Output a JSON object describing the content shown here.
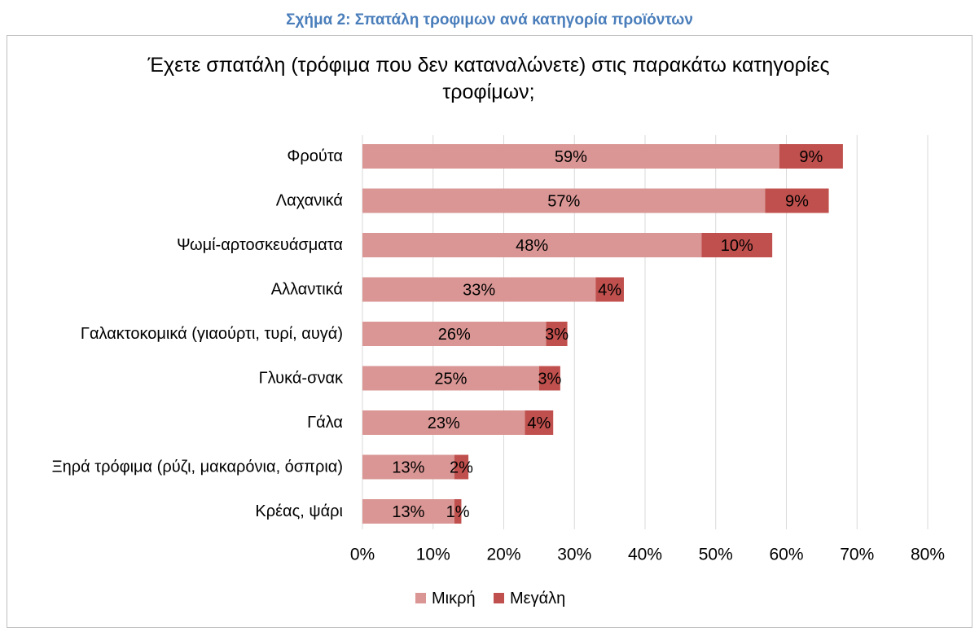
{
  "caption": "Σχήμα 2: Σπατάλη τροφιμων ανά κατηγορία προϊόντων",
  "chart_data": {
    "type": "bar",
    "orientation": "horizontal",
    "stacked": true,
    "title_lines": [
      "Έχετε σπατάλη (τρόφιμα που δεν καταναλώνετε) στις παρακάτω κατηγορίες",
      "τροφίμων;"
    ],
    "categories": [
      "Φρούτα",
      "Λαχανικά",
      "Ψωμί-αρτοσκευάσματα",
      "Αλλαντικά",
      "Γαλακτοκομικά (γιαούρτι, τυρί, αυγά)",
      "Γλυκά-σνακ",
      "Γάλα",
      "Ξηρά τρόφιμα (ρύζι, μακαρόνια, όσπρια)",
      "Κρέας, ψάρι"
    ],
    "series": [
      {
        "name": "Μικρή",
        "values": [
          59,
          57,
          48,
          33,
          26,
          25,
          23,
          13,
          13
        ],
        "labels": [
          "59%",
          "57%",
          "48%",
          "33%",
          "26%",
          "25%",
          "23%",
          "13%",
          "13%"
        ],
        "color": "#d99694"
      },
      {
        "name": "Μεγάλη",
        "values": [
          9,
          9,
          10,
          4,
          3,
          3,
          4,
          2,
          1
        ],
        "labels": [
          "9%",
          "9%",
          "10%",
          "4%",
          "3%",
          "3%",
          "4%",
          "2%",
          "1%"
        ],
        "color": "#c0504d"
      }
    ],
    "xlim": [
      0,
      80
    ],
    "xticks": [
      "0%",
      "10%",
      "20%",
      "30%",
      "40%",
      "50%",
      "60%",
      "70%",
      "80%"
    ],
    "grid": true,
    "legend_position": "bottom"
  }
}
